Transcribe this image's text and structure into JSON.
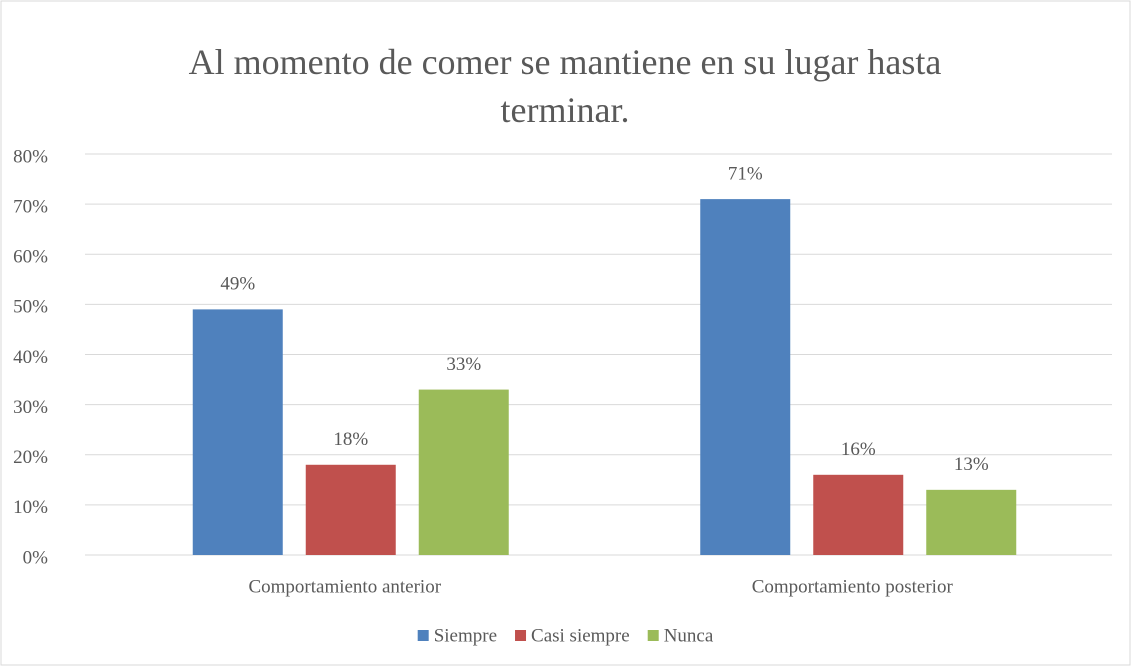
{
  "chart_data": {
    "type": "bar",
    "title": "Al momento de comer se mantiene en su lugar hasta terminar.",
    "categories": [
      "Comportamiento anterior",
      "Comportamiento posterior"
    ],
    "series": [
      {
        "name": "Siempre",
        "color": "#4f81bd",
        "values": [
          49,
          71
        ],
        "value_labels": [
          "49%",
          "71%"
        ]
      },
      {
        "name": "Casi siempre",
        "color": "#c0504d",
        "values": [
          18,
          16
        ],
        "value_labels": [
          "18%",
          "16%"
        ]
      },
      {
        "name": "Nunca",
        "color": "#9bbb59",
        "values": [
          33,
          13
        ],
        "value_labels": [
          "33%",
          "13%"
        ]
      }
    ],
    "ylim": [
      0,
      80
    ],
    "yticks": [
      {
        "value": 0,
        "label": "0%"
      },
      {
        "value": 10,
        "label": "10%"
      },
      {
        "value": 20,
        "label": "20%"
      },
      {
        "value": 30,
        "label": "30%"
      },
      {
        "value": 40,
        "label": "40%"
      },
      {
        "value": 50,
        "label": "50%"
      },
      {
        "value": 60,
        "label": "60%"
      },
      {
        "value": 70,
        "label": "70%"
      },
      {
        "value": 80,
        "label": "80%"
      }
    ],
    "grid": true,
    "legend": "bottom"
  }
}
